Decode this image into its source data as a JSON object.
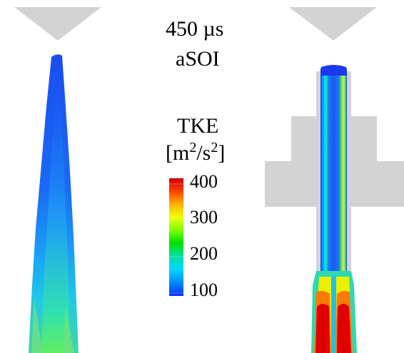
{
  "annotation": {
    "time_value": "450 µs",
    "time_ref": "aSOI"
  },
  "colorbar": {
    "title": "TKE",
    "units_open": "[m",
    "units_exp1": "2",
    "units_mid": "/s",
    "units_exp2": "2",
    "units_close": "]",
    "ticks": [
      {
        "label": "400"
      },
      {
        "label": "300"
      },
      {
        "label": "200"
      },
      {
        "label": "100"
      }
    ],
    "colors": [
      "#d40000",
      "#ff5a00",
      "#ffc400",
      "#e8ff00",
      "#78ff00",
      "#00e000",
      "#00d890",
      "#00c8ff",
      "#0090ff",
      "#0040ff"
    ]
  },
  "panels": [
    {
      "name": "free-spray"
    },
    {
      "name": "confined-spray"
    }
  ]
}
